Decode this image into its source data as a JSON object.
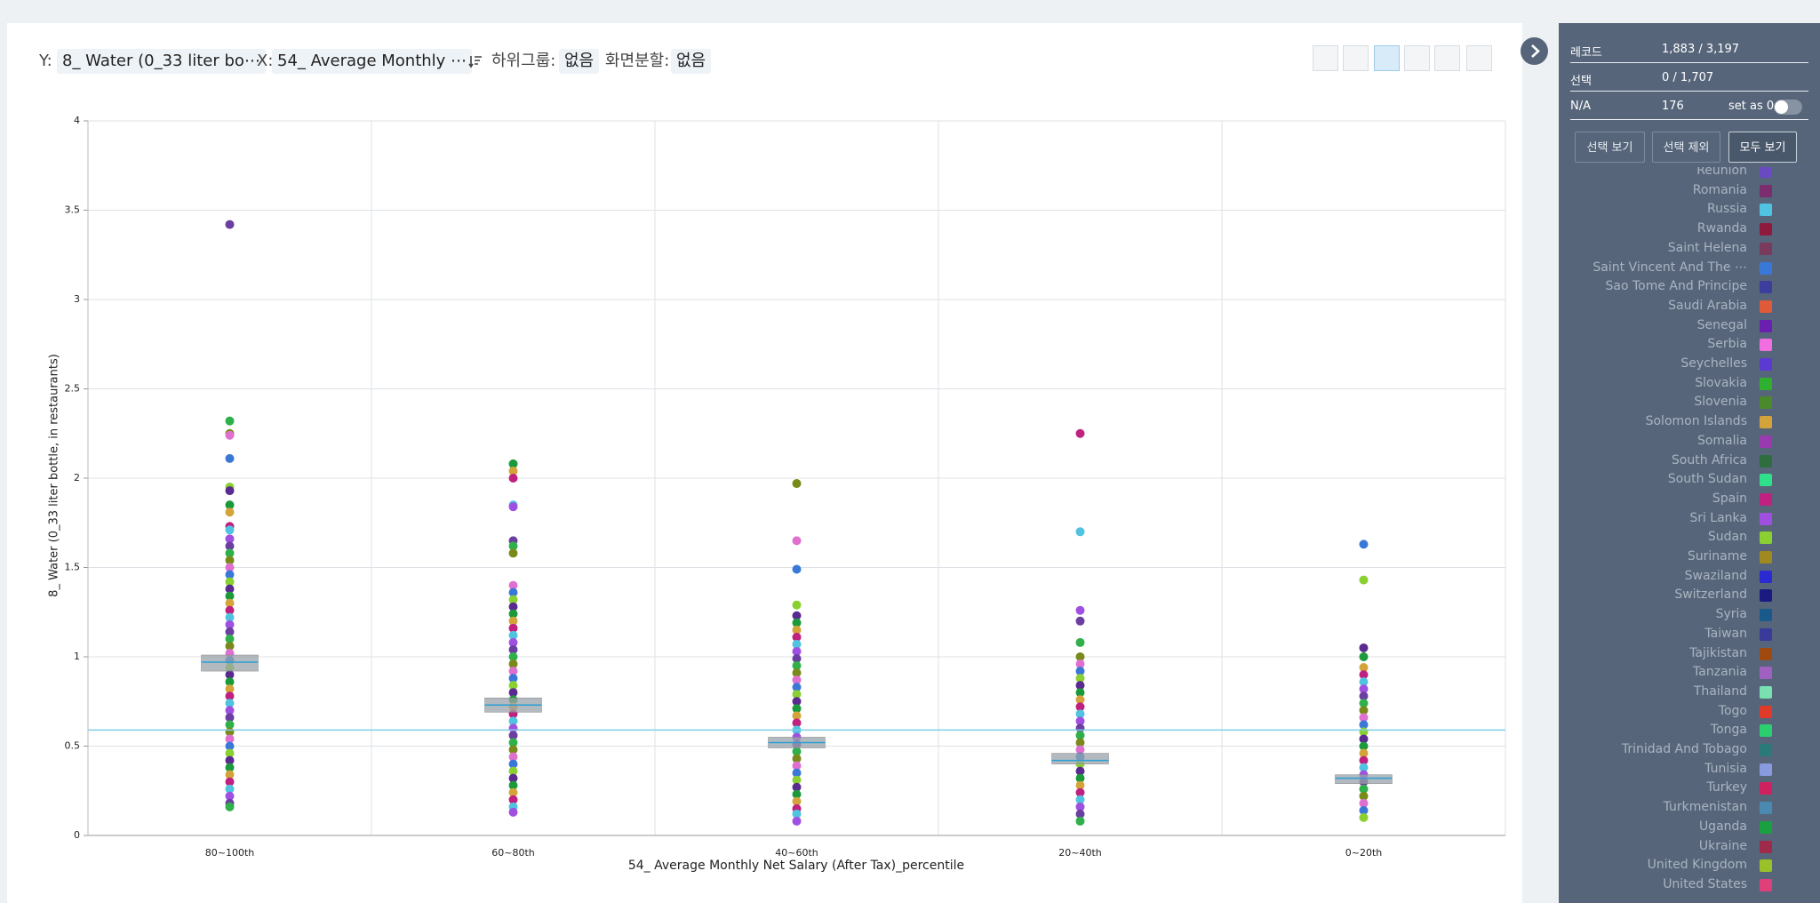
{
  "toolbar": {
    "y_label": "Y:",
    "y_field": "8_ Water (0_33 liter bo⋯",
    "x_label": "X:",
    "x_field": "54_ Average Monthly ⋯",
    "subgroup_label": "하위그룹:",
    "subgroup_value": "없음",
    "split_label": "화면분할:",
    "split_value": "없음"
  },
  "chart_data": {
    "type": "strip",
    "x_label": "54_ Average Monthly Net Salary (After Tax)_percentile",
    "y_label": "8_ Water (0_33 liter bottle, in restaurants)",
    "categories": [
      "80~100th",
      "60~80th",
      "40~60th",
      "20~40th",
      "0~20th"
    ],
    "ylim": [
      0,
      4
    ],
    "yticks": [
      0,
      0.5,
      1,
      1.5,
      2,
      2.5,
      3,
      3.5,
      4
    ],
    "grid": true,
    "reference_line": 0.59,
    "reference_color": "#7fcfe6",
    "box_color": "#9aa3aa",
    "median_color": "#2a9fd6",
    "point_palette": [
      "#6b3fa0",
      "#2fb04a",
      "#7a8a1a",
      "#e070d0",
      "#3a78d8",
      "#8ad030",
      "#5a2a90",
      "#1a9a3a",
      "#d4a43a",
      "#c02080",
      "#4fc3e0",
      "#a050e0"
    ],
    "values": [
      [
        3.42,
        2.32,
        2.25,
        2.24,
        2.11,
        1.95,
        1.93,
        1.85,
        1.81,
        1.73,
        1.71,
        1.66,
        1.62,
        1.58,
        1.54,
        1.5,
        1.46,
        1.42,
        1.38,
        1.34,
        1.3,
        1.26,
        1.22,
        1.18,
        1.14,
        1.1,
        1.06,
        1.02,
        0.98,
        0.94,
        0.9,
        0.86,
        0.82,
        0.78,
        0.74,
        0.7,
        0.66,
        0.62,
        0.58,
        0.54,
        0.5,
        0.46,
        0.42,
        0.38,
        0.34,
        0.3,
        0.26,
        0.22,
        0.18,
        0.16
      ],
      [
        2.08,
        2.04,
        2.0,
        1.85,
        1.84,
        1.65,
        1.62,
        1.58,
        1.4,
        1.36,
        1.32,
        1.28,
        1.24,
        1.2,
        1.16,
        1.12,
        1.08,
        1.04,
        1.0,
        0.96,
        0.92,
        0.88,
        0.84,
        0.8,
        0.76,
        0.72,
        0.68,
        0.64,
        0.6,
        0.56,
        0.52,
        0.48,
        0.44,
        0.4,
        0.36,
        0.32,
        0.28,
        0.24,
        0.2,
        0.16,
        0.13
      ],
      [
        1.97,
        1.65,
        1.49,
        1.29,
        1.23,
        1.19,
        1.15,
        1.11,
        1.07,
        1.03,
        0.99,
        0.95,
        0.91,
        0.87,
        0.83,
        0.79,
        0.75,
        0.71,
        0.67,
        0.63,
        0.59,
        0.55,
        0.51,
        0.47,
        0.43,
        0.39,
        0.35,
        0.31,
        0.27,
        0.23,
        0.19,
        0.15,
        0.12,
        0.08
      ],
      [
        2.25,
        1.7,
        1.26,
        1.2,
        1.08,
        1.0,
        0.96,
        0.92,
        0.88,
        0.84,
        0.8,
        0.76,
        0.72,
        0.68,
        0.64,
        0.6,
        0.56,
        0.52,
        0.48,
        0.44,
        0.4,
        0.36,
        0.32,
        0.28,
        0.24,
        0.2,
        0.16,
        0.12,
        0.08
      ],
      [
        1.63,
        1.43,
        1.05,
        1.0,
        0.94,
        0.9,
        0.86,
        0.82,
        0.78,
        0.74,
        0.7,
        0.66,
        0.62,
        0.58,
        0.54,
        0.5,
        0.46,
        0.42,
        0.38,
        0.34,
        0.3,
        0.26,
        0.22,
        0.18,
        0.14,
        0.1
      ]
    ],
    "boxes": [
      {
        "q1": 0.92,
        "median": 0.97,
        "q3": 1.01
      },
      {
        "q1": 0.69,
        "median": 0.73,
        "q3": 0.77
      },
      {
        "q1": 0.49,
        "median": 0.52,
        "q3": 0.55
      },
      {
        "q1": 0.4,
        "median": 0.42,
        "q3": 0.46
      },
      {
        "q1": 0.29,
        "median": 0.32,
        "q3": 0.34
      }
    ]
  },
  "sidebar": {
    "rows": [
      {
        "label": "레코드",
        "value": "1,883 / 3,197"
      },
      {
        "label": "선택",
        "value": "0 / 1,707"
      },
      {
        "label": "N/A",
        "value": "176"
      }
    ],
    "na_option": "set as 0",
    "buttons": [
      "선택 보기",
      "선택 제외",
      "모두 보기"
    ],
    "legend": [
      {
        "label": "Reunion",
        "color": "#6a4ac0"
      },
      {
        "label": "Romania",
        "color": "#7b2d6e"
      },
      {
        "label": "Russia",
        "color": "#4fc3e0"
      },
      {
        "label": "Rwanda",
        "color": "#8e1a3e"
      },
      {
        "label": "Saint Helena",
        "color": "#7a3a5e"
      },
      {
        "label": "Saint Vincent And The ⋯",
        "color": "#3a78d8"
      },
      {
        "label": "Sao Tome And Principe",
        "color": "#3d3d9e"
      },
      {
        "label": "Saudi Arabia",
        "color": "#e05a3a"
      },
      {
        "label": "Senegal",
        "color": "#6a1fb0"
      },
      {
        "label": "Serbia",
        "color": "#f06ee0"
      },
      {
        "label": "Seychelles",
        "color": "#5a3ad0"
      },
      {
        "label": "Slovakia",
        "color": "#2fb02f"
      },
      {
        "label": "Slovenia",
        "color": "#4a8a2a"
      },
      {
        "label": "Solomon Islands",
        "color": "#d4a43a"
      },
      {
        "label": "Somalia",
        "color": "#9a3ab0"
      },
      {
        "label": "South Africa",
        "color": "#2e6e3e"
      },
      {
        "label": "South Sudan",
        "color": "#2ee08a"
      },
      {
        "label": "Spain",
        "color": "#c02080"
      },
      {
        "label": "Sri Lanka",
        "color": "#a050e0"
      },
      {
        "label": "Sudan",
        "color": "#8ad030"
      },
      {
        "label": "Suriname",
        "color": "#a08a20"
      },
      {
        "label": "Swaziland",
        "color": "#2a2ad0"
      },
      {
        "label": "Switzerland",
        "color": "#1a1a80"
      },
      {
        "label": "Syria",
        "color": "#1a5a8a"
      },
      {
        "label": "Taiwan",
        "color": "#3a3a9a"
      },
      {
        "label": "Tajikistan",
        "color": "#a04a10"
      },
      {
        "label": "Tanzania",
        "color": "#a060c0"
      },
      {
        "label": "Thailand",
        "color": "#7ae0b0"
      },
      {
        "label": "Togo",
        "color": "#e03a2a"
      },
      {
        "label": "Tonga",
        "color": "#2ad070"
      },
      {
        "label": "Trinidad And Tobago",
        "color": "#2a7a7a"
      },
      {
        "label": "Tunisia",
        "color": "#8a9ae0"
      },
      {
        "label": "Turkey",
        "color": "#d02060"
      },
      {
        "label": "Turkmenistan",
        "color": "#4a8ab0"
      },
      {
        "label": "Uganda",
        "color": "#1aa040"
      },
      {
        "label": "Ukraine",
        "color": "#a02a4a"
      },
      {
        "label": "United Kingdom",
        "color": "#9ac02a"
      },
      {
        "label": "United States",
        "color": "#e0407a"
      }
    ]
  }
}
